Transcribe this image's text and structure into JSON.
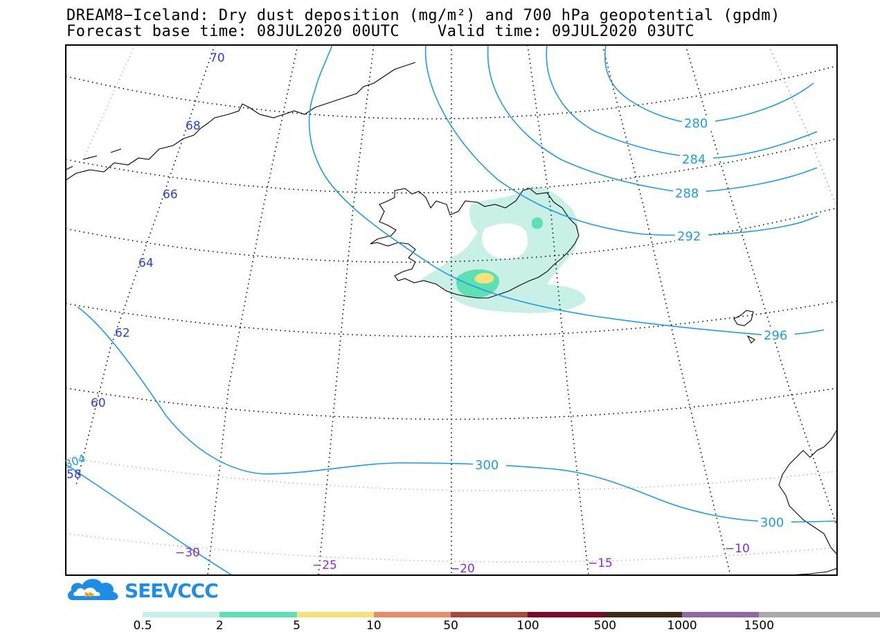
{
  "title_line1": "DREAM8−Iceland: Dry dust deposition (mg/m²) and 700 hPa geopotential (gpdm)",
  "title_line2": "Forecast base time: 08JUL2020 00UTC    Valid time: 09JUL2020 03UTC",
  "lat_labels": [
    "70",
    "68",
    "66",
    "64",
    "62",
    "60",
    "58"
  ],
  "lon_labels": [
    "−30",
    "−25",
    "−20",
    "−15",
    "−10"
  ],
  "contour_labels": [
    "280",
    "284",
    "288",
    "292",
    "296",
    "300",
    "300",
    "304"
  ],
  "logo_text": "SEEVCCC",
  "colorbar": {
    "colors": [
      "#c8f0e6",
      "#5ee0b4",
      "#f5e27a",
      "#e88c6a",
      "#a84a40",
      "#7a0a2a",
      "#3e2a1a",
      "#8e6aa0",
      "#aaaaaa",
      "#aaaaaa"
    ],
    "ticks": [
      "0.5",
      "2",
      "5",
      "10",
      "50",
      "100",
      "500",
      "1000",
      "1500"
    ]
  },
  "colors": {
    "geopotential": "#1f9ae8",
    "lat_label": "#2a3ee0",
    "lon_label": "#8a2ae0",
    "dust_low": "#c8f0e6",
    "dust_mid": "#5ee0b4",
    "dust_high": "#f5e27a"
  }
}
